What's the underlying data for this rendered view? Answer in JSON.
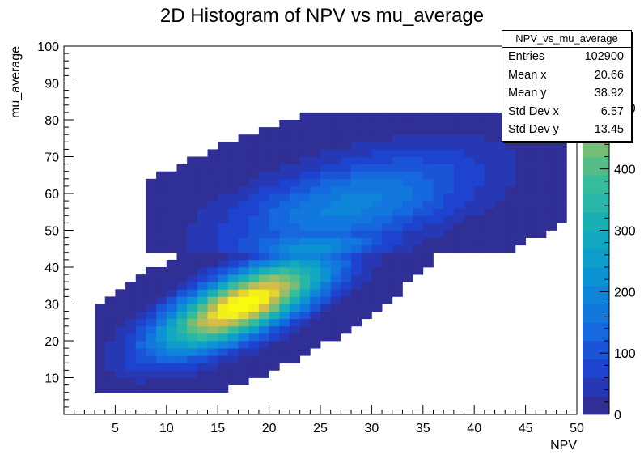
{
  "chart_data": {
    "type": "heatmap",
    "title": "2D Histogram of NPV vs mu_average",
    "xlabel": "NPV",
    "ylabel": "mu_average",
    "xlim": [
      0,
      50
    ],
    "ylim": [
      0,
      100
    ],
    "x_ticks": [
      5,
      10,
      15,
      20,
      25,
      30,
      35,
      40,
      45,
      50
    ],
    "y_ticks": [
      10,
      20,
      30,
      40,
      50,
      60,
      70,
      80,
      90,
      100
    ],
    "colorbar": {
      "ticks": [
        0,
        100,
        200,
        300,
        400,
        500
      ],
      "range": [
        0,
        600
      ],
      "palette": "kBird"
    },
    "density_model": {
      "components": [
        {
          "cx": 17.5,
          "cy": 30,
          "peak": 640,
          "sx": 5.5,
          "sy": 8.5,
          "rho": 0.72,
          "xmin": 3,
          "xmax": 36,
          "ymin": 7,
          "ymax": 48
        },
        {
          "cx": 28,
          "cy": 57,
          "peak": 190,
          "sx": 8.5,
          "sy": 10,
          "rho": 0.55,
          "xmin": 8,
          "xmax": 49,
          "ymin": 44,
          "ymax": 82
        }
      ]
    },
    "stats": {
      "name": "NPV_vs_mu_average",
      "rows": [
        {
          "label": "Entries",
          "value": "102900"
        },
        {
          "label": "Mean x",
          "value": "20.66"
        },
        {
          "label": "Mean y",
          "value": "38.92"
        },
        {
          "label": "Std Dev x",
          "value": "6.57"
        },
        {
          "label": "Std Dev y",
          "value": "13.45"
        }
      ]
    }
  }
}
